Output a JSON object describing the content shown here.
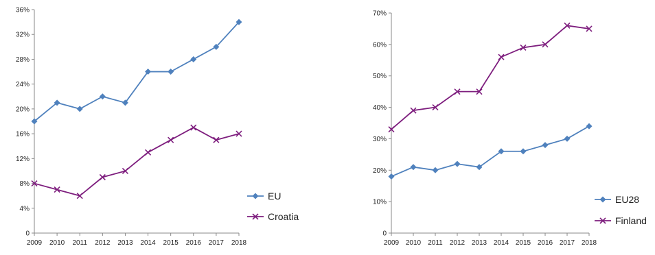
{
  "chart_data": [
    {
      "type": "line",
      "x": [
        "2009",
        "2010",
        "2011",
        "2012",
        "2013",
        "2014",
        "2015",
        "2016",
        "2017",
        "2018"
      ],
      "ylim": [
        0,
        36
      ],
      "yticks": [
        "0",
        "4%",
        "8%",
        "12%",
        "16%",
        "20%",
        "24%",
        "28%",
        "32%",
        "36%"
      ],
      "grid": false,
      "legend": "right",
      "series": [
        {
          "name": "EU",
          "marker": "diamond",
          "color": "#4f81bd",
          "values": [
            18,
            21,
            20,
            22,
            21,
            26,
            26,
            28,
            30,
            34
          ]
        },
        {
          "name": "Croatia",
          "marker": "x",
          "color": "#7e1e7e",
          "values": [
            8,
            7,
            6,
            9,
            10,
            13,
            15,
            17,
            15,
            16
          ]
        }
      ]
    },
    {
      "type": "line",
      "x": [
        "2009",
        "2010",
        "2011",
        "2012",
        "2013",
        "2014",
        "2015",
        "2016",
        "2017",
        "2018"
      ],
      "ylim": [
        0,
        70
      ],
      "yticks": [
        "0",
        "10%",
        "20%",
        "30%",
        "40%",
        "50%",
        "60%",
        "70%"
      ],
      "grid": false,
      "legend": "right",
      "series": [
        {
          "name": "EU28",
          "marker": "diamond",
          "color": "#4f81bd",
          "values": [
            18,
            21,
            20,
            22,
            21,
            26,
            26,
            28,
            30,
            34
          ]
        },
        {
          "name": "Finland",
          "marker": "x",
          "color": "#7e1e7e",
          "values": [
            33,
            39,
            40,
            45,
            45,
            56,
            59,
            60,
            66,
            65
          ]
        }
      ]
    }
  ]
}
